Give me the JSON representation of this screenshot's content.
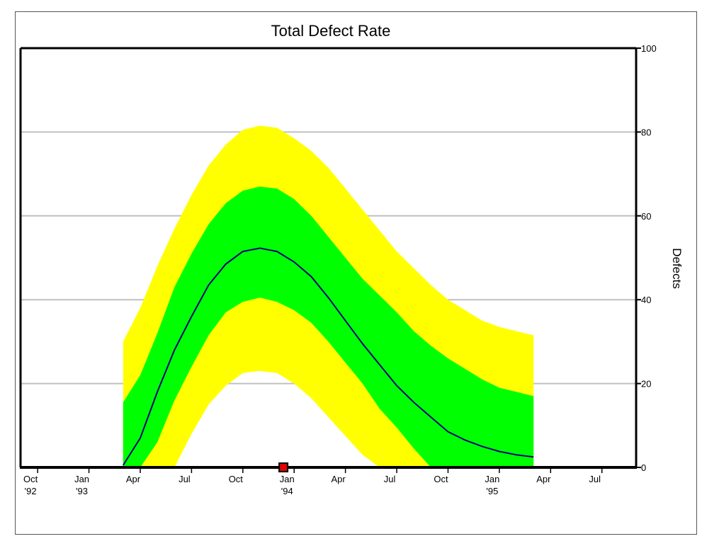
{
  "chart_data": {
    "type": "area",
    "title": "Total Defect Rate",
    "ylabel": "Defects",
    "xlabel": "",
    "ylim": [
      0,
      100
    ],
    "y_ticks": [
      0,
      20,
      40,
      60,
      80,
      100
    ],
    "y_axis_side": "right",
    "grid": "horizontal",
    "xlim": [
      "1992-09",
      "1995-09"
    ],
    "x_ticks": [
      {
        "date": "1992-10",
        "label": "Oct",
        "sublabel": "'92"
      },
      {
        "date": "1993-01",
        "label": "Jan",
        "sublabel": "'93"
      },
      {
        "date": "1993-04",
        "label": "Apr",
        "sublabel": ""
      },
      {
        "date": "1993-07",
        "label": "Jul",
        "sublabel": ""
      },
      {
        "date": "1993-10",
        "label": "Oct",
        "sublabel": ""
      },
      {
        "date": "1994-01",
        "label": "Jan",
        "sublabel": "'94"
      },
      {
        "date": "1994-04",
        "label": "Apr",
        "sublabel": ""
      },
      {
        "date": "1994-07",
        "label": "Jul",
        "sublabel": ""
      },
      {
        "date": "1994-10",
        "label": "Oct",
        "sublabel": ""
      },
      {
        "date": "1995-01",
        "label": "Jan",
        "sublabel": "'95"
      },
      {
        "date": "1995-04",
        "label": "Apr",
        "sublabel": ""
      },
      {
        "date": "1995-07",
        "label": "Jul",
        "sublabel": ""
      }
    ],
    "x": [
      "1993-03",
      "1993-04",
      "1993-05",
      "1993-06",
      "1993-07",
      "1993-08",
      "1993-09",
      "1993-10",
      "1993-11",
      "1993-12",
      "1994-01",
      "1994-02",
      "1994-03",
      "1994-04",
      "1994-05",
      "1994-06",
      "1994-07",
      "1994-08",
      "1994-09",
      "1994-10",
      "1994-11",
      "1994-12",
      "1995-01",
      "1995-02",
      "1995-03"
    ],
    "series": [
      {
        "role": "mean",
        "color": "#000080",
        "values": [
          0.5,
          7,
          18,
          28,
          36,
          43.5,
          48.5,
          51.5,
          52.3,
          51.5,
          49,
          45.5,
          40.5,
          35,
          29.5,
          24.5,
          19.5,
          15.5,
          12,
          8.5,
          6.5,
          5,
          3.8,
          3,
          2.5
        ]
      },
      {
        "role": "inner_band_upper",
        "color": "#00ff00",
        "values": [
          15.5,
          22,
          32,
          43,
          51,
          58,
          63,
          66,
          67,
          66.5,
          64,
          60,
          55,
          50,
          45,
          41,
          37,
          32.5,
          29,
          26,
          23.5,
          21,
          19,
          18,
          17
        ]
      },
      {
        "role": "inner_band_lower",
        "color": "#00ff00",
        "values": [
          0,
          0,
          6,
          16,
          24,
          31.5,
          37,
          39.5,
          40.5,
          39.5,
          37.5,
          34.5,
          30,
          25,
          20,
          14,
          9.5,
          4.5,
          0,
          0,
          0,
          0,
          0,
          0,
          0
        ]
      },
      {
        "role": "outer_band_upper",
        "color": "#ffff00",
        "values": [
          30,
          38,
          48,
          57,
          65,
          72,
          77,
          80.5,
          81.5,
          81,
          78.5,
          75.5,
          71.5,
          66.5,
          61.5,
          56.5,
          51.5,
          47.5,
          43.5,
          40,
          37.5,
          35,
          33.5,
          32.5,
          31.5
        ]
      },
      {
        "role": "outer_band_lower",
        "color": "#ffff00",
        "values": [
          0,
          0,
          0,
          0,
          8,
          15,
          19.5,
          22.5,
          23,
          22.5,
          20,
          16.5,
          12,
          7.5,
          3,
          0,
          0,
          0,
          0,
          0,
          0,
          0,
          0,
          0,
          0
        ]
      }
    ],
    "marker": {
      "date": "1993-12",
      "y": 0,
      "color": "#e00000"
    }
  }
}
